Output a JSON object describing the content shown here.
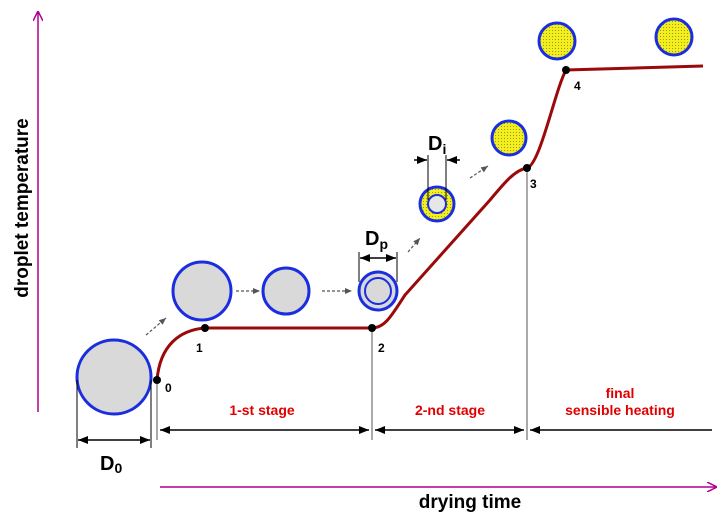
{
  "axes": {
    "y_label": "droplet temperature",
    "x_label": "drying time"
  },
  "points": [
    "0",
    "1",
    "2",
    "3",
    "4"
  ],
  "dimensions": {
    "d0": {
      "symbol": "D",
      "subscript": "0"
    },
    "dp": {
      "symbol": "D",
      "subscript": "p"
    },
    "di": {
      "symbol": "D",
      "subscript": "i"
    }
  },
  "stages": [
    "1-st  stage",
    "2-nd  stage"
  ],
  "final_stage": [
    "final",
    "sensible heating"
  ]
}
